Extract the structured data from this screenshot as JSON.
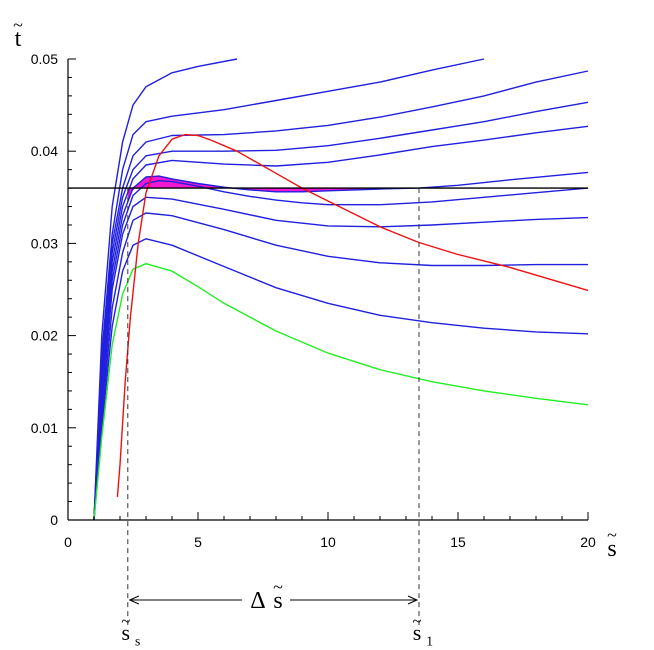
{
  "chart_data": {
    "type": "line",
    "xlabel": "s",
    "ylabel": "t",
    "xlim": [
      0,
      20
    ],
    "ylim": [
      0,
      0.05
    ],
    "x_ticks": [
      "0",
      "5",
      "10",
      "15",
      "20"
    ],
    "y_ticks": [
      "0",
      "0.01",
      "0.02",
      "0.03",
      "0.04",
      "0.05"
    ],
    "grid": false,
    "colors": {
      "isotherm": "#2020dd",
      "critical": "#22ee22",
      "spinodal": "#ee1111",
      "equal_area": "#ee00cc",
      "axis": "#000000"
    },
    "series": [
      {
        "role": "isotherm",
        "color": "#2020dd",
        "x": [
          1.0,
          1.3,
          1.7,
          2.1,
          2.5,
          3.0,
          4.0,
          5.0,
          6.5
        ],
        "y": [
          0.0,
          0.02,
          0.034,
          0.041,
          0.045,
          0.047,
          0.0485,
          0.0492,
          0.05
        ]
      },
      {
        "role": "isotherm",
        "color": "#2020dd",
        "x": [
          1.0,
          1.3,
          1.7,
          2.1,
          2.5,
          3.0,
          4.0,
          6.0,
          8.0,
          10.0,
          12.0,
          14.0,
          16.0
        ],
        "y": [
          0.0,
          0.018,
          0.031,
          0.038,
          0.0418,
          0.0432,
          0.0438,
          0.0445,
          0.0455,
          0.0465,
          0.0475,
          0.0488,
          0.05
        ]
      },
      {
        "role": "isotherm",
        "color": "#2020dd",
        "x": [
          1.0,
          1.3,
          1.7,
          2.1,
          2.5,
          3.0,
          4.0,
          6.0,
          8.0,
          10.0,
          12.0,
          14.0,
          16.0,
          18.0,
          20.0
        ],
        "y": [
          0.0,
          0.017,
          0.03,
          0.036,
          0.0395,
          0.041,
          0.0417,
          0.0418,
          0.0422,
          0.0428,
          0.0437,
          0.0448,
          0.046,
          0.0475,
          0.0487
        ]
      },
      {
        "role": "isotherm",
        "color": "#2020dd",
        "x": [
          1.0,
          1.3,
          1.7,
          2.1,
          2.5,
          3.0,
          4.0,
          6.0,
          8.0,
          10.0,
          12.0,
          14.0,
          16.0,
          18.0,
          20.0
        ],
        "y": [
          0.0,
          0.016,
          0.029,
          0.035,
          0.038,
          0.0395,
          0.04,
          0.04,
          0.0401,
          0.0406,
          0.0414,
          0.0423,
          0.0432,
          0.0443,
          0.0453
        ]
      },
      {
        "role": "isotherm",
        "color": "#2020dd",
        "x": [
          1.0,
          1.3,
          1.7,
          2.1,
          2.5,
          3.0,
          4.0,
          6.0,
          8.0,
          10.0,
          12.0,
          14.0,
          16.0,
          18.0,
          20.0
        ],
        "y": [
          0.0,
          0.015,
          0.028,
          0.034,
          0.037,
          0.0385,
          0.039,
          0.0386,
          0.0384,
          0.0388,
          0.0396,
          0.0405,
          0.0412,
          0.042,
          0.0427
        ]
      },
      {
        "role": "isotherm",
        "color": "#2020dd",
        "x": [
          1.0,
          1.3,
          1.7,
          2.1,
          2.5,
          3.0,
          3.5,
          4.0,
          5.0,
          6.0,
          7.0,
          8.0,
          9.0,
          10.0,
          12.0,
          13.5,
          15.0,
          17.0,
          20.0
        ],
        "y": [
          0.0,
          0.014,
          0.027,
          0.033,
          0.036,
          0.0372,
          0.0373,
          0.037,
          0.0365,
          0.0361,
          0.0358,
          0.0356,
          0.0356,
          0.0357,
          0.0359,
          0.036,
          0.0363,
          0.0369,
          0.0377
        ]
      },
      {
        "role": "isotherm",
        "color": "#2020dd",
        "x": [
          1.0,
          1.3,
          1.7,
          2.1,
          2.5,
          3.0,
          3.5,
          4.0,
          5.0,
          6.0,
          7.0,
          8.0,
          9.0,
          10.0,
          12.0,
          14.0,
          16.0,
          18.0,
          20.0
        ],
        "y": [
          0.0,
          0.013,
          0.026,
          0.032,
          0.0352,
          0.0365,
          0.0368,
          0.0367,
          0.0362,
          0.0356,
          0.0351,
          0.0347,
          0.0344,
          0.0342,
          0.0342,
          0.0345,
          0.035,
          0.0355,
          0.036
        ]
      },
      {
        "role": "isotherm",
        "color": "#2020dd",
        "x": [
          1.0,
          1.3,
          1.7,
          2.1,
          2.5,
          3.0,
          4.0,
          6.0,
          8.0,
          10.0,
          12.0,
          14.0,
          16.0,
          18.0,
          20.0
        ],
        "y": [
          0.0,
          0.012,
          0.025,
          0.031,
          0.034,
          0.035,
          0.0348,
          0.0337,
          0.0325,
          0.0319,
          0.0318,
          0.032,
          0.0323,
          0.0326,
          0.0328
        ]
      },
      {
        "role": "isotherm",
        "color": "#2020dd",
        "x": [
          1.0,
          1.3,
          1.7,
          2.1,
          2.5,
          3.0,
          4.0,
          6.0,
          8.0,
          10.0,
          12.0,
          14.0,
          16.0,
          18.0,
          20.0
        ],
        "y": [
          0.0,
          0.011,
          0.023,
          0.029,
          0.0325,
          0.0333,
          0.033,
          0.0315,
          0.0298,
          0.0286,
          0.0279,
          0.0276,
          0.0276,
          0.0277,
          0.0277
        ]
      },
      {
        "role": "isotherm",
        "color": "#2020dd",
        "x": [
          1.0,
          1.3,
          1.7,
          2.1,
          2.5,
          3.0,
          4.0,
          6.0,
          8.0,
          10.0,
          12.0,
          14.0,
          16.0,
          18.0,
          20.0
        ],
        "y": [
          0.0,
          0.01,
          0.021,
          0.027,
          0.0298,
          0.0305,
          0.0298,
          0.0275,
          0.0252,
          0.0235,
          0.0222,
          0.0214,
          0.0208,
          0.0204,
          0.0202
        ]
      },
      {
        "role": "critical",
        "color": "#22ee22",
        "x": [
          1.0,
          1.3,
          1.7,
          2.1,
          2.5,
          3.0,
          4.0,
          5.0,
          6.0,
          8.0,
          10.0,
          12.0,
          14.0,
          16.0,
          18.0,
          20.0
        ],
        "y": [
          0.0,
          0.009,
          0.019,
          0.0245,
          0.0272,
          0.0278,
          0.027,
          0.0253,
          0.0235,
          0.0205,
          0.0181,
          0.0163,
          0.015,
          0.014,
          0.0132,
          0.0125
        ]
      },
      {
        "role": "spinodal",
        "color": "#ee1111",
        "x": [
          1.9,
          2.0,
          2.2,
          2.4,
          2.7,
          3.0,
          3.5,
          4.0,
          4.5,
          5.0,
          5.5,
          6.5,
          8.0,
          9.0,
          10.0,
          12.0,
          13.5,
          15.0,
          17.0,
          20.0
        ],
        "y": [
          0.0025,
          0.006,
          0.015,
          0.022,
          0.03,
          0.0355,
          0.0395,
          0.0413,
          0.0418,
          0.0417,
          0.0412,
          0.04,
          0.0376,
          0.036,
          0.0346,
          0.0318,
          0.0301,
          0.0288,
          0.0274,
          0.0249
        ]
      }
    ],
    "threshold": {
      "y": 0.036,
      "color": "#000000"
    },
    "equal_area": {
      "x_start": 2.3,
      "x_end": 13.5,
      "curve_index": 5,
      "color": "#ee00cc"
    },
    "annotations": {
      "delta_label": "Δ",
      "delta_var": "s",
      "s_start_label": "s",
      "s_start_sub": "s",
      "s_end_label": "s",
      "s_end_sub": "1",
      "tilde": "~"
    }
  }
}
